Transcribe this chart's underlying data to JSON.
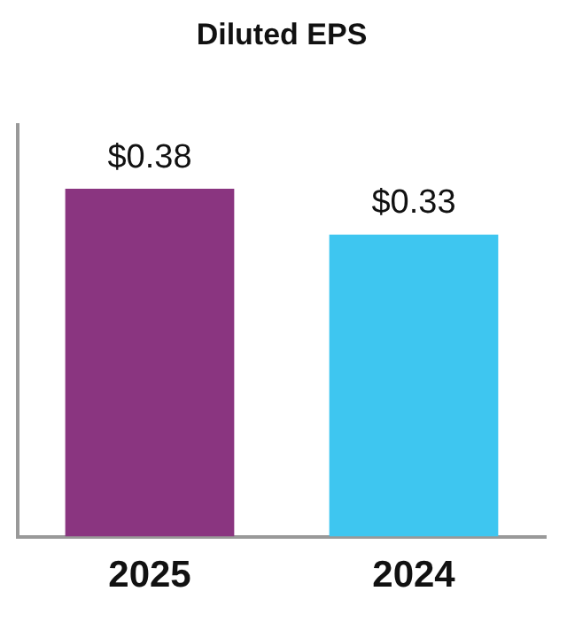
{
  "chart_data": {
    "type": "bar",
    "title": "Diluted EPS",
    "categories": [
      "2025",
      "2024"
    ],
    "values": [
      0.38,
      0.33
    ],
    "colors": [
      "#8a3580",
      "#3ec6f0"
    ],
    "value_labels": [
      "$0.38",
      "$0.33"
    ],
    "grid": false,
    "legend": false
  }
}
